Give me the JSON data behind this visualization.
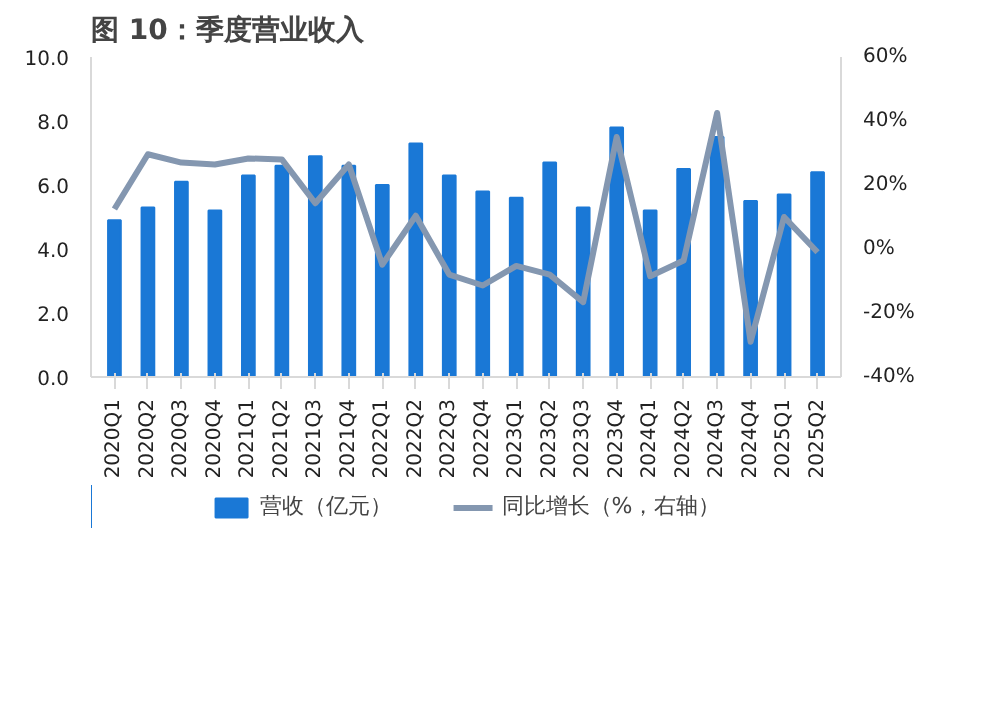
{
  "chart_data": {
    "type": "bar",
    "title": "图 10：季度营业收入",
    "categories": [
      "2020Q1",
      "2020Q2",
      "2020Q3",
      "2020Q4",
      "2021Q1",
      "2021Q2",
      "2021Q3",
      "2021Q4",
      "2022Q1",
      "2022Q2",
      "2022Q3",
      "2022Q4",
      "2023Q1",
      "2023Q2",
      "2023Q3",
      "2023Q4",
      "2024Q1",
      "2024Q2",
      "2024Q3",
      "2024Q4",
      "2025Q1",
      "2025Q2"
    ],
    "series": [
      {
        "name": "营收（亿元）",
        "color": "#1a78d6",
        "values": [
          4.9,
          5.3,
          6.1,
          5.2,
          6.3,
          6.6,
          6.9,
          6.6,
          6.0,
          7.3,
          6.3,
          5.8,
          5.6,
          6.7,
          5.3,
          7.8,
          5.2,
          6.5,
          7.5,
          5.5,
          5.7,
          6.4
        ]
      },
      {
        "name": "同比增长（%，右轴）",
        "type": "line",
        "axis": "y2",
        "color": "#8497b0",
        "values": [
          12.5,
          29.6,
          27,
          26.4,
          28.3,
          28,
          14.3,
          26.4,
          -4.9,
          10.4,
          -8,
          -11.4,
          -5.3,
          -8,
          -16.6,
          35,
          -8.5,
          -3.6,
          42.5,
          -29,
          10,
          -1
        ]
      }
    ],
    "ylim": [
      0,
      10
    ],
    "yticks": [
      {
        "value": 0,
        "label": "0.0"
      },
      {
        "value": 2,
        "label": "2.0"
      },
      {
        "value": 4,
        "label": "4.0"
      },
      {
        "value": 6,
        "label": "6.0"
      },
      {
        "value": 8,
        "label": "8.0"
      },
      {
        "value": 10,
        "label": "10.0"
      }
    ],
    "y2lim": [
      -40,
      60
    ],
    "y2ticks": [
      {
        "value": -40,
        "label": "-40%"
      },
      {
        "value": -20,
        "label": "-20%"
      },
      {
        "value": 0,
        "label": "0%"
      },
      {
        "value": 20,
        "label": "20%"
      },
      {
        "value": 40,
        "label": "40%"
      },
      {
        "value": 60,
        "label": "60%"
      }
    ],
    "grid": false,
    "legend": "bottom"
  }
}
